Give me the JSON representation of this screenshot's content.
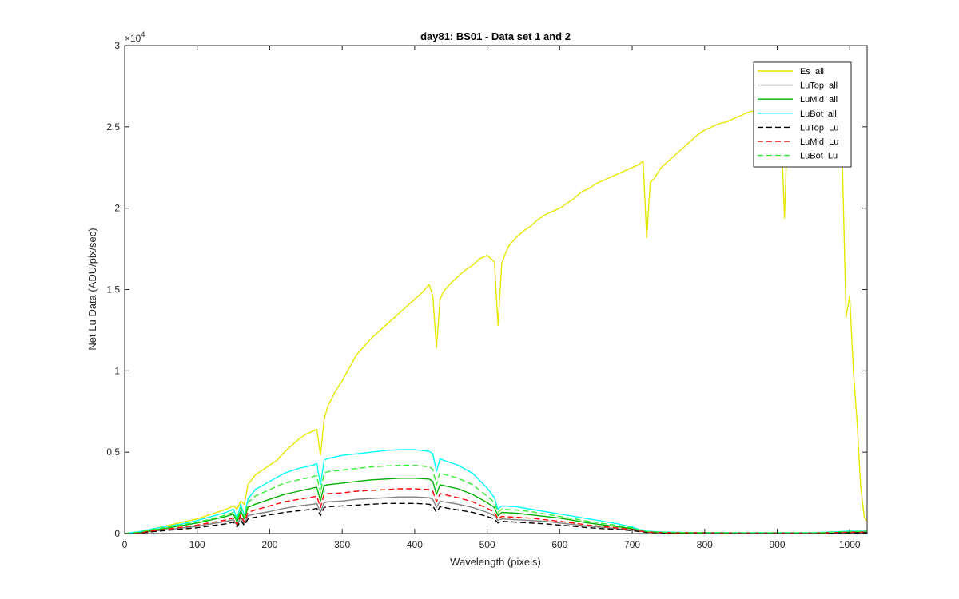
{
  "chart_data": {
    "type": "line",
    "title": "day81: BS01 - Data set 1 and 2",
    "xlabel": "Wavelength (pixels)",
    "ylabel": "Net Lu Data (ADU/pix/sec)",
    "xlim": [
      0,
      1024
    ],
    "ylim": [
      0,
      30000
    ],
    "y_exponent_label": "×10",
    "y_exponent_power": "4",
    "x_ticks": [
      0,
      100,
      200,
      300,
      400,
      500,
      600,
      700,
      800,
      900,
      1000
    ],
    "x_tick_labels": [
      "0",
      "100",
      "200",
      "300",
      "400",
      "500",
      "600",
      "700",
      "800",
      "900",
      "1000"
    ],
    "y_ticks": [
      0,
      5000,
      10000,
      15000,
      20000,
      25000,
      30000
    ],
    "y_tick_labels": [
      "0",
      "0.5",
      "1",
      "1.5",
      "2",
      "2.5",
      "3"
    ],
    "grid": false,
    "legend_position": "top-right",
    "series": [
      {
        "name": "Es  all",
        "color": "#e6e600",
        "dash": "solid",
        "x": [
          0,
          20,
          40,
          60,
          80,
          100,
          120,
          140,
          150,
          155,
          160,
          165,
          170,
          180,
          190,
          200,
          210,
          220,
          230,
          240,
          250,
          260,
          265,
          270,
          275,
          280,
          290,
          300,
          310,
          320,
          330,
          340,
          350,
          360,
          370,
          380,
          390,
          400,
          410,
          420,
          425,
          430,
          435,
          440,
          450,
          460,
          470,
          480,
          490,
          500,
          510,
          515,
          520,
          525,
          530,
          540,
          550,
          560,
          570,
          580,
          590,
          600,
          610,
          620,
          630,
          640,
          650,
          660,
          670,
          680,
          690,
          700,
          710,
          715,
          720,
          725,
          730,
          740,
          750,
          760,
          770,
          780,
          790,
          800,
          810,
          820,
          830,
          840,
          850,
          860,
          870,
          880,
          890,
          900,
          905,
          910,
          915,
          920,
          930,
          940,
          950,
          960,
          970,
          980,
          990,
          995,
          1000,
          1005,
          1010,
          1015,
          1020,
          1024
        ],
        "y": [
          0,
          100,
          300,
          500,
          700,
          900,
          1200,
          1500,
          1700,
          1500,
          2000,
          1800,
          3000,
          3600,
          3900,
          4200,
          4500,
          5000,
          5400,
          5800,
          6100,
          6300,
          6400,
          4800,
          7000,
          7800,
          8700,
          9400,
          10200,
          11000,
          11500,
          12000,
          12400,
          12800,
          13200,
          13600,
          14000,
          14400,
          14800,
          15300,
          14600,
          11400,
          14400,
          14900,
          15400,
          15800,
          16200,
          16500,
          16900,
          17100,
          16700,
          12800,
          16600,
          17200,
          17700,
          18200,
          18600,
          18900,
          19300,
          19600,
          19800,
          20000,
          20300,
          20600,
          21000,
          21200,
          21500,
          21700,
          21900,
          22100,
          22300,
          22500,
          22700,
          22900,
          18200,
          21600,
          21800,
          22500,
          22900,
          23300,
          23700,
          24100,
          24500,
          24800,
          25000,
          25200,
          25300,
          25500,
          25700,
          25900,
          26000,
          26100,
          26200,
          26300,
          25500,
          19400,
          25900,
          26200,
          25900,
          25600,
          25400,
          25000,
          24600,
          24000,
          22500,
          13300,
          14600,
          10000,
          7000,
          3000,
          1000,
          800
        ]
      },
      {
        "name": "LuTop  all",
        "color": "#808080",
        "dash": "solid",
        "x": [
          0,
          20,
          40,
          60,
          80,
          100,
          120,
          140,
          150,
          155,
          160,
          165,
          170,
          180,
          200,
          220,
          240,
          260,
          265,
          270,
          275,
          280,
          300,
          320,
          340,
          360,
          380,
          400,
          420,
          425,
          430,
          435,
          440,
          460,
          480,
          500,
          510,
          515,
          520,
          540,
          560,
          580,
          600,
          620,
          640,
          660,
          680,
          700,
          710,
          720,
          740,
          760,
          800,
          850,
          900,
          950,
          1000,
          1024
        ],
        "y": [
          0,
          50,
          150,
          250,
          350,
          450,
          600,
          750,
          850,
          500,
          1000,
          600,
          1100,
          1200,
          1350,
          1550,
          1700,
          1800,
          1850,
          1300,
          1900,
          1950,
          2000,
          2100,
          2150,
          2200,
          2250,
          2250,
          2200,
          2100,
          1600,
          2000,
          1950,
          1800,
          1600,
          1300,
          1100,
          800,
          900,
          850,
          800,
          750,
          650,
          550,
          450,
          380,
          300,
          220,
          150,
          100,
          80,
          60,
          50,
          40,
          40,
          40,
          60,
          60
        ]
      },
      {
        "name": "LuMid  all",
        "color": "#00b000",
        "dash": "solid",
        "x": [
          0,
          20,
          40,
          60,
          80,
          100,
          120,
          140,
          150,
          155,
          160,
          165,
          170,
          180,
          200,
          220,
          240,
          260,
          265,
          270,
          275,
          280,
          300,
          320,
          340,
          360,
          380,
          400,
          420,
          425,
          430,
          435,
          440,
          460,
          480,
          500,
          510,
          515,
          520,
          540,
          560,
          580,
          600,
          620,
          640,
          660,
          680,
          700,
          710,
          720,
          740,
          760,
          800,
          850,
          900,
          950,
          1000,
          1024
        ],
        "y": [
          0,
          80,
          200,
          350,
          500,
          650,
          850,
          1050,
          1200,
          700,
          1400,
          900,
          1600,
          1800,
          2100,
          2400,
          2600,
          2800,
          2850,
          2000,
          2950,
          3000,
          3100,
          3200,
          3300,
          3350,
          3400,
          3400,
          3350,
          3200,
          2400,
          3000,
          2950,
          2750,
          2400,
          1900,
          1600,
          1100,
          1300,
          1250,
          1150,
          1050,
          950,
          800,
          650,
          530,
          420,
          300,
          200,
          120,
          80,
          60,
          50,
          40,
          40,
          40,
          120,
          130
        ]
      },
      {
        "name": "LuBot  all",
        "color": "#00ffff",
        "dash": "solid",
        "x": [
          0,
          20,
          40,
          60,
          80,
          100,
          120,
          140,
          150,
          155,
          160,
          165,
          170,
          180,
          200,
          220,
          240,
          260,
          265,
          270,
          275,
          280,
          300,
          320,
          340,
          360,
          380,
          400,
          420,
          425,
          430,
          435,
          440,
          460,
          480,
          500,
          510,
          515,
          520,
          540,
          560,
          580,
          600,
          620,
          640,
          660,
          680,
          700,
          710,
          720,
          740,
          760,
          800,
          850,
          900,
          950,
          1000,
          1024
        ],
        "y": [
          0,
          120,
          300,
          450,
          600,
          800,
          1050,
          1300,
          1500,
          900,
          1800,
          1100,
          2100,
          2700,
          3200,
          3700,
          4000,
          4200,
          4300,
          3000,
          4500,
          4600,
          4800,
          4900,
          5000,
          5100,
          5150,
          5150,
          5050,
          4900,
          3800,
          4600,
          4500,
          4200,
          3700,
          2800,
          2200,
          1500,
          1700,
          1650,
          1500,
          1350,
          1200,
          1050,
          900,
          750,
          600,
          400,
          250,
          150,
          100,
          80,
          60,
          50,
          50,
          50,
          150,
          150
        ]
      },
      {
        "name": "LuTop  Lu",
        "color": "#000000",
        "dash": "dashed",
        "x": [
          0,
          20,
          40,
          60,
          80,
          100,
          120,
          140,
          150,
          155,
          160,
          165,
          170,
          180,
          200,
          220,
          240,
          260,
          265,
          270,
          275,
          280,
          300,
          320,
          340,
          360,
          380,
          400,
          420,
          425,
          430,
          435,
          440,
          460,
          480,
          500,
          510,
          515,
          520,
          540,
          560,
          580,
          600,
          620,
          640,
          660,
          680,
          700,
          710,
          720,
          740,
          760,
          800,
          850,
          900,
          950,
          1000,
          1024
        ],
        "y": [
          0,
          40,
          120,
          200,
          280,
          360,
          480,
          600,
          700,
          400,
          800,
          500,
          900,
          1000,
          1150,
          1300,
          1400,
          1500,
          1550,
          1100,
          1600,
          1650,
          1700,
          1750,
          1800,
          1850,
          1850,
          1850,
          1800,
          1700,
          1300,
          1650,
          1600,
          1450,
          1300,
          1050,
          900,
          650,
          750,
          700,
          650,
          600,
          520,
          440,
          360,
          300,
          240,
          180,
          120,
          80,
          60,
          50,
          40,
          30,
          30,
          30,
          50,
          50
        ]
      },
      {
        "name": "LuMid  Lu",
        "color": "#ff0000",
        "dash": "dashed",
        "x": [
          0,
          20,
          40,
          60,
          80,
          100,
          120,
          140,
          150,
          155,
          160,
          165,
          170,
          180,
          200,
          220,
          240,
          260,
          265,
          270,
          275,
          280,
          300,
          320,
          340,
          360,
          380,
          400,
          420,
          425,
          430,
          435,
          440,
          460,
          480,
          500,
          510,
          515,
          520,
          540,
          560,
          580,
          600,
          620,
          640,
          660,
          680,
          700,
          710,
          720,
          740,
          760,
          800,
          850,
          900,
          950,
          1000,
          1024
        ],
        "y": [
          0,
          60,
          170,
          280,
          400,
          520,
          680,
          840,
          960,
          550,
          1150,
          700,
          1300,
          1450,
          1700,
          1950,
          2100,
          2250,
          2300,
          1600,
          2400,
          2450,
          2500,
          2600,
          2650,
          2700,
          2750,
          2750,
          2700,
          2600,
          1950,
          2450,
          2400,
          2200,
          1950,
          1550,
          1300,
          900,
          1050,
          1000,
          950,
          850,
          750,
          640,
          520,
          430,
          340,
          250,
          170,
          100,
          70,
          55,
          45,
          35,
          35,
          35,
          90,
          100
        ]
      },
      {
        "name": "LuBot  Lu",
        "color": "#33ee33",
        "dash": "dashed",
        "x": [
          0,
          20,
          40,
          60,
          80,
          100,
          120,
          140,
          150,
          155,
          160,
          165,
          170,
          180,
          200,
          220,
          240,
          260,
          265,
          270,
          275,
          280,
          300,
          320,
          340,
          360,
          380,
          400,
          420,
          425,
          430,
          435,
          440,
          460,
          480,
          500,
          510,
          515,
          520,
          540,
          560,
          580,
          600,
          620,
          640,
          660,
          680,
          700,
          710,
          720,
          740,
          760,
          800,
          850,
          900,
          950,
          1000,
          1024
        ],
        "y": [
          0,
          100,
          250,
          400,
          550,
          700,
          900,
          1150,
          1300,
          800,
          1600,
          1000,
          1900,
          2300,
          2700,
          3100,
          3300,
          3500,
          3550,
          2500,
          3700,
          3800,
          3900,
          4000,
          4100,
          4150,
          4200,
          4200,
          4100,
          3950,
          3000,
          3750,
          3650,
          3400,
          3000,
          2300,
          1900,
          1300,
          1500,
          1450,
          1350,
          1200,
          1050,
          900,
          750,
          620,
          500,
          350,
          220,
          130,
          90,
          70,
          55,
          45,
          45,
          45,
          130,
          140
        ]
      }
    ]
  }
}
